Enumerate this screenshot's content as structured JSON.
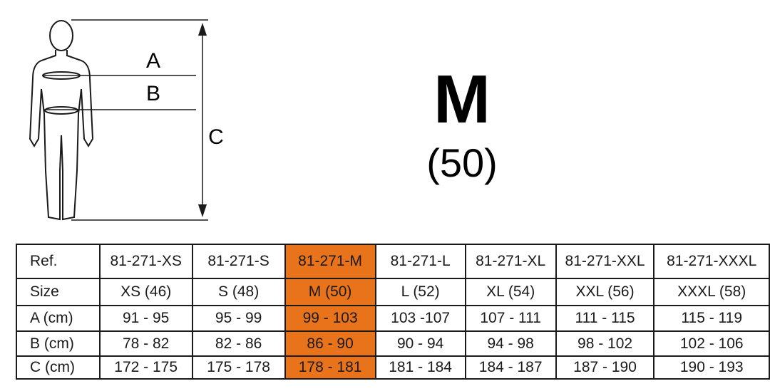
{
  "figure": {
    "labels": [
      "A",
      "B",
      "C"
    ]
  },
  "size": {
    "label": "M",
    "number": "(50)"
  },
  "table": {
    "rows": [
      [
        "Ref.",
        "81-271-XS",
        "81-271-S",
        "81-271-M",
        "81-271-L",
        "81-271-XL",
        "81-271-XXL",
        "81-271-XXXL"
      ],
      [
        "Size",
        "XS (46)",
        "S (48)",
        "M (50)",
        "L (52)",
        "XL (54)",
        "XXL (56)",
        "XXXL (58)"
      ],
      [
        "A (cm)",
        "91 - 95",
        "95 - 99",
        "99 - 103",
        "103 -107",
        "107 - 111",
        "111 - 115",
        "115 - 119"
      ],
      [
        "B (cm)",
        "78 - 82",
        "82 - 86",
        "86 - 90",
        "90 - 94",
        "94 - 98",
        "98 - 102",
        "102 - 106"
      ],
      [
        "C (cm)",
        "172 - 175",
        "175 - 178",
        "178 - 181",
        "181 - 184",
        "184 - 187",
        "187 - 190",
        "190 - 193"
      ]
    ]
  }
}
